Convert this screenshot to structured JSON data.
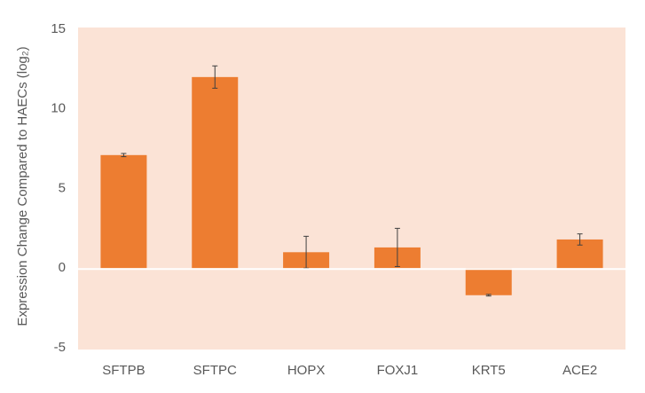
{
  "chart_data": {
    "type": "bar",
    "y_label": "Expression Change Compared to HAECs (log₂)",
    "categories": [
      "SFTPB",
      "SFTPC",
      "HOPX",
      "FOXJ1",
      "KRT5",
      "ACE2"
    ],
    "values": [
      7.1,
      12.0,
      1.0,
      1.3,
      -1.7,
      1.8
    ],
    "errors": [
      0.1,
      0.7,
      1.0,
      1.2,
      0.05,
      0.35
    ],
    "color": "#ed7d31",
    "background": "#fbe3d6",
    "ylim": [
      -5,
      15
    ],
    "yticks": [
      -5,
      0,
      5,
      10,
      15
    ]
  }
}
